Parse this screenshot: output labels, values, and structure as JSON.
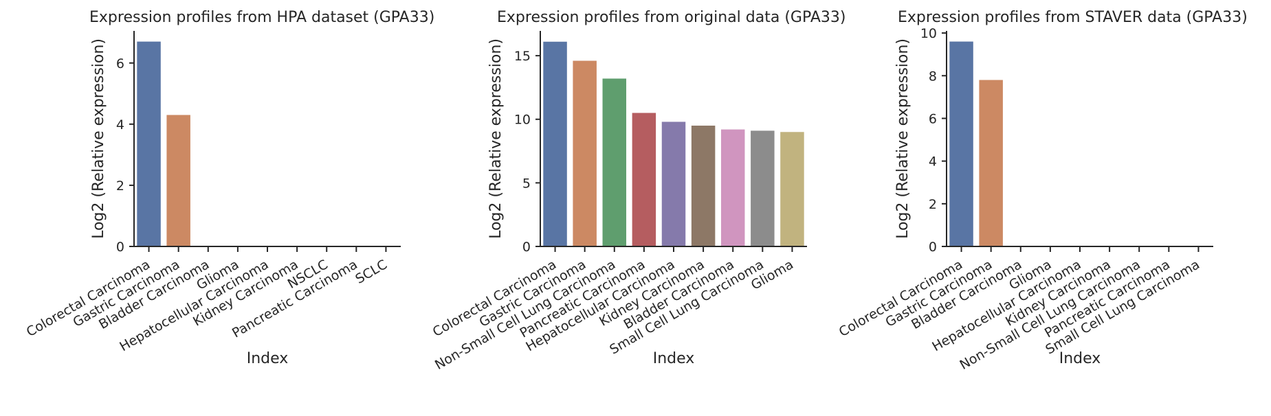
{
  "chart_data": [
    {
      "type": "bar",
      "title": "Expression profiles from HPA dataset (GPA33)",
      "xlabel": "Index",
      "ylabel": "Log2 (Relative expression)",
      "categories": [
        "Colorectal Carcinoma",
        "Gastric Carcinoma",
        "Bladder Carcinoma",
        "Glioma",
        "Hepatocellular Carcinoma",
        "Kidney Carcinoma",
        "NSCLC",
        "Pancreatic Carcinoma",
        "SCLC"
      ],
      "values": [
        6.7,
        4.3,
        0,
        0,
        0,
        0,
        0,
        0,
        0
      ],
      "ylim": [
        0,
        7.05
      ],
      "yticks": [
        0,
        2,
        4,
        6
      ],
      "grid": false,
      "legend": "none"
    },
    {
      "type": "bar",
      "title": "Expression profiles from original data (GPA33)",
      "xlabel": "Index",
      "ylabel": "Log2 (Relative expression)",
      "categories": [
        "Colorectal Carcinoma",
        "Gastric Carcinoma",
        "Non-Small Cell Lung Carcinoma",
        "Pancreatic Carcinoma",
        "Hepatocellular Carcinoma",
        "Kidney Carcinoma",
        "Bladder Carcinoma",
        "Small Cell Lung Carcinoma",
        "Glioma"
      ],
      "values": [
        16.1,
        14.6,
        13.2,
        10.5,
        9.8,
        9.5,
        9.2,
        9.1,
        9.0
      ],
      "ylim": [
        0,
        16.95
      ],
      "yticks": [
        0,
        5,
        10,
        15
      ],
      "grid": false,
      "legend": "none"
    },
    {
      "type": "bar",
      "title": "Expression profiles from STAVER data (GPA33)",
      "xlabel": "Index",
      "ylabel": "Log2 (Relative expression)",
      "categories": [
        "Colorectal Carcinoma",
        "Gastric Carcinoma",
        "Bladder Carcinoma",
        "Glioma",
        "Hepatocellular Carcinoma",
        "Kidney Carcinoma",
        "Non-Small Cell Lung Carcinoma",
        "Pancreatic Carcinoma",
        "Small Cell Lung Carcinoma"
      ],
      "values": [
        9.6,
        7.8,
        0,
        0,
        0,
        0,
        0,
        0,
        0
      ],
      "ylim": [
        0,
        10.1
      ],
      "yticks": [
        0,
        2,
        4,
        6,
        8,
        10
      ],
      "grid": false,
      "legend": "none"
    }
  ],
  "palette": [
    "#5975a4",
    "#cc8963",
    "#5f9e6e",
    "#b55d60",
    "#857aab",
    "#8d7866",
    "#d095bf",
    "#8c8c8c",
    "#c1b37f"
  ]
}
